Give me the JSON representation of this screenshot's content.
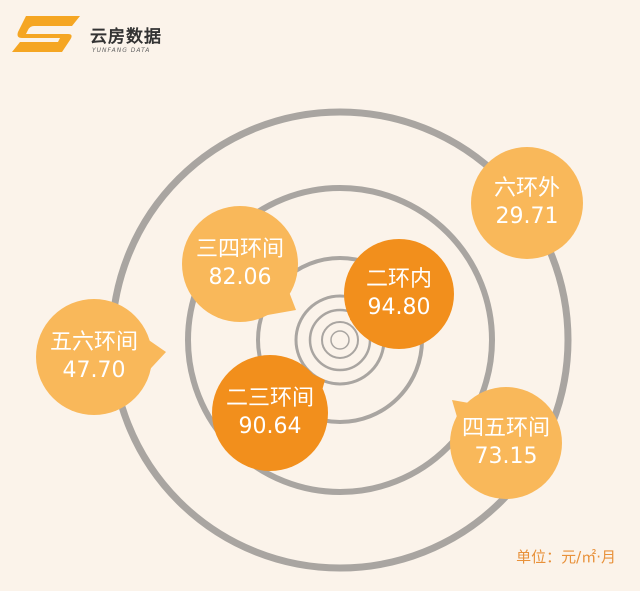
{
  "brand": {
    "name_cn": "云房数据",
    "name_en": "YUNFANG DATA",
    "color": "#f5a623"
  },
  "unit": "单位：元/㎡·月",
  "colors": {
    "light_bubble": "#f9b85a",
    "dark_bubble": "#f28f1c",
    "ring": "#a9a5a1"
  },
  "chart_data": {
    "type": "bubble",
    "title": "",
    "categories": [
      "二环内",
      "二三环间",
      "三四环间",
      "四五环间",
      "五六环间",
      "六环外"
    ],
    "values": [
      94.8,
      90.64,
      82.06,
      73.15,
      47.7,
      29.71
    ],
    "display_values": [
      "94.80",
      "90.64",
      "82.06",
      "73.15",
      "47.70",
      "29.71"
    ],
    "highlight": [
      "二环内",
      "二三环间"
    ]
  }
}
